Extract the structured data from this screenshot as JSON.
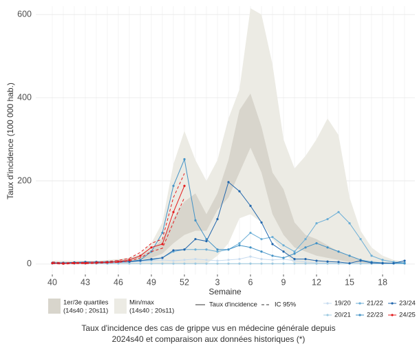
{
  "chart_data": {
    "type": "line",
    "x_label": "Semaine",
    "y_label": "Taux d'incidence (100 000 hab.)",
    "caption": [
      "Taux d'incidence des cas de grippe vus en médecine générale depuis",
      "2024s40 et comparaison aux données historiques (*)"
    ],
    "categories": [
      "40",
      null,
      null,
      "43",
      null,
      null,
      "46",
      null,
      null,
      "49",
      null,
      null,
      "52",
      null,
      null,
      "3",
      null,
      null,
      "6",
      null,
      null,
      "9",
      null,
      null,
      "12",
      null,
      null,
      "15",
      null,
      null,
      "18",
      null,
      null
    ],
    "ylim": [
      -25,
      620
    ],
    "yticks": [
      0,
      200,
      400,
      600
    ],
    "grid": true,
    "bands": [
      {
        "name": "Min/max",
        "period": "(14s40 ; 20s11)",
        "color": "#ecebe4",
        "upper": [
          8,
          8,
          8,
          8,
          8,
          10,
          12,
          15,
          25,
          50,
          100,
          240,
          320,
          250,
          200,
          250,
          350,
          420,
          615,
          600,
          480,
          300,
          230,
          260,
          300,
          350,
          310,
          160,
          80,
          40,
          20,
          10,
          6
        ],
        "lower": [
          0,
          0,
          0,
          0,
          0,
          0,
          0,
          0,
          0,
          0,
          0,
          0,
          0,
          0,
          0,
          20,
          50,
          110,
          120,
          100,
          60,
          30,
          0,
          0,
          0,
          0,
          0,
          0,
          0,
          0,
          0,
          0,
          0
        ]
      },
      {
        "name": "1er/3e quartiles",
        "period": "(14s40 ; 20s11)",
        "color": "#d8d5cc",
        "upper": [
          5,
          5,
          5,
          6,
          6,
          8,
          10,
          15,
          20,
          35,
          60,
          110,
          150,
          170,
          120,
          170,
          250,
          370,
          410,
          330,
          220,
          180,
          100,
          70,
          60,
          45,
          30,
          20,
          10,
          6,
          4,
          3,
          3
        ],
        "lower": [
          1,
          1,
          1,
          2,
          2,
          3,
          4,
          6,
          10,
          15,
          25,
          50,
          70,
          80,
          80,
          130,
          160,
          220,
          280,
          220,
          120,
          70,
          40,
          30,
          20,
          15,
          10,
          5,
          3,
          2,
          1,
          1,
          1
        ]
      }
    ],
    "line_label": "Taux d'incidence",
    "ci_label": "IC 95%",
    "series": [
      {
        "name": "19/20",
        "color": "#c6dbef",
        "values": [
          2,
          2,
          2,
          3,
          3,
          3,
          4,
          5,
          6,
          8,
          10,
          8,
          10,
          12,
          10,
          8,
          10,
          12,
          18,
          12,
          10,
          12,
          8,
          5,
          3,
          2,
          2,
          1,
          1,
          1,
          1,
          1,
          1
        ]
      },
      {
        "name": "20/21",
        "color": "#9ecae1",
        "values": [
          1,
          1,
          1,
          1,
          1,
          1,
          1,
          1,
          1,
          1,
          1,
          1,
          1,
          1,
          1,
          1,
          1,
          1,
          1,
          1,
          1,
          1,
          1,
          1,
          1,
          1,
          1,
          1,
          1,
          1,
          1,
          1,
          1
        ]
      },
      {
        "name": "21/22",
        "color": "#6baed6",
        "values": [
          2,
          2,
          2,
          2,
          3,
          3,
          4,
          5,
          8,
          10,
          15,
          30,
          35,
          35,
          35,
          30,
          35,
          50,
          75,
          60,
          65,
          45,
          30,
          60,
          98,
          108,
          125,
          98,
          60,
          20,
          10,
          5,
          3
        ]
      },
      {
        "name": "22/23",
        "color": "#4292c6",
        "values": [
          3,
          3,
          4,
          4,
          5,
          5,
          6,
          6,
          10,
          30,
          75,
          188,
          252,
          105,
          60,
          35,
          35,
          45,
          40,
          30,
          20,
          15,
          25,
          40,
          50,
          40,
          30,
          20,
          10,
          5,
          3,
          2,
          2
        ]
      },
      {
        "name": "23/24",
        "color": "#2166ac",
        "values": [
          3,
          3,
          4,
          5,
          5,
          5,
          6,
          6,
          8,
          12,
          15,
          33,
          35,
          60,
          55,
          108,
          197,
          175,
          140,
          100,
          48,
          30,
          12,
          12,
          8,
          6,
          5,
          2,
          8,
          3,
          2,
          2,
          8
        ]
      },
      {
        "name": "24/25",
        "color": "#e31a1c",
        "values": [
          2,
          1,
          2,
          2,
          3,
          4,
          6,
          10,
          20,
          40,
          48,
          125,
          188,
          null,
          null,
          null,
          null,
          null,
          null,
          null,
          null,
          null,
          null,
          null,
          null,
          null,
          null,
          null,
          null,
          null,
          null,
          null,
          null
        ],
        "ci_lower": [
          1,
          0,
          1,
          1,
          2,
          3,
          4,
          7,
          15,
          30,
          38,
          100,
          160,
          null,
          null,
          null,
          null,
          null,
          null,
          null,
          null,
          null,
          null,
          null,
          null,
          null,
          null,
          null,
          null,
          null,
          null,
          null,
          null
        ],
        "ci_upper": [
          5,
          3,
          4,
          4,
          5,
          6,
          9,
          14,
          28,
          50,
          60,
          160,
          218,
          null,
          null,
          null,
          null,
          null,
          null,
          null,
          null,
          null,
          null,
          null,
          null,
          null,
          null,
          null,
          null,
          null,
          null,
          null,
          null
        ]
      }
    ]
  }
}
